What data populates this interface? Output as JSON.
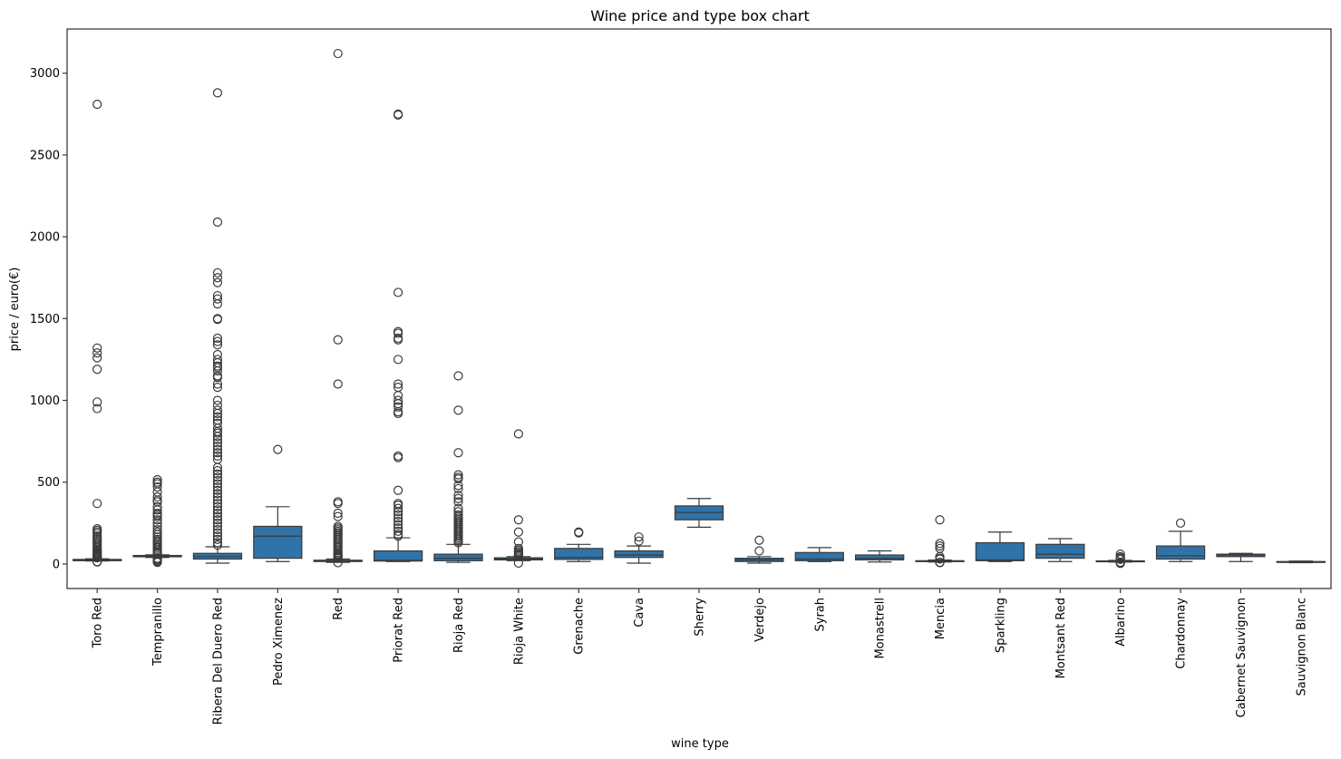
{
  "chart_data": {
    "type": "box",
    "title": "Wine price and type box chart",
    "xlabel": "wine type",
    "ylabel": "price / euro(€)",
    "ylim": [
      -150,
      3270
    ],
    "yticks": [
      0,
      500,
      1000,
      1500,
      2000,
      2500,
      3000
    ],
    "categories": [
      "Toro Red",
      "Tempranillo",
      "Ribera Del Duero Red",
      "Pedro Ximenez",
      "Red",
      "Priorat Red",
      "Rioja Red",
      "Rioja White",
      "Grenache",
      "Cava",
      "Sherry",
      "Verdejo",
      "Syrah",
      "Monastrell",
      "Mencia",
      "Sparkling",
      "Montsant Red",
      "Albarino",
      "Chardonnay",
      "Cabernet Sauvignon",
      "Sauvignon Blanc"
    ],
    "series": [
      {
        "name": "Toro Red",
        "whisker_low": 18,
        "q1": 20,
        "median": 25,
        "q3": 28,
        "whisker_high": 32,
        "outliers": [
          2810,
          1320,
          1290,
          1260,
          1190,
          990,
          950,
          370,
          215,
          205,
          195,
          185,
          170,
          160,
          150,
          140,
          130,
          120,
          110,
          100,
          92,
          85,
          78,
          72,
          66,
          60,
          55,
          50,
          45,
          42,
          38,
          14,
          12
        ]
      },
      {
        "name": "Tempranillo",
        "whisker_low": 40,
        "q1": 44,
        "median": 48,
        "q3": 52,
        "whisker_high": 56,
        "outliers": [
          515,
          500,
          490,
          470,
          440,
          410,
          390,
          380,
          350,
          330,
          310,
          300,
          290,
          270,
          250,
          230,
          210,
          195,
          180,
          165,
          150,
          140,
          130,
          120,
          110,
          100,
          90,
          80,
          72,
          65,
          35,
          28,
          22,
          15,
          10
        ]
      },
      {
        "name": "Ribera Del Duero Red",
        "whisker_low": 5,
        "q1": 30,
        "median": 45,
        "q3": 65,
        "whisker_high": 105,
        "outliers": [
          2880,
          2090,
          1780,
          1750,
          1720,
          1640,
          1620,
          1590,
          1500,
          1495,
          1380,
          1360,
          1340,
          1280,
          1250,
          1230,
          1210,
          1200,
          1180,
          1150,
          1140,
          1100,
          1080,
          1000,
          970,
          940,
          920,
          900,
          880,
          860,
          830,
          810,
          800,
          780,
          760,
          740,
          720,
          700,
          680,
          660,
          640,
          590,
          570,
          550,
          530,
          510,
          490,
          470,
          450,
          430,
          410,
          390,
          370,
          350,
          330,
          310,
          290,
          270,
          250,
          230,
          210,
          190,
          170,
          150,
          130,
          115
        ]
      },
      {
        "name": "Pedro Ximenez",
        "whisker_low": 15,
        "q1": 35,
        "median": 170,
        "q3": 230,
        "whisker_high": 350,
        "outliers": [
          700
        ]
      },
      {
        "name": "Red",
        "whisker_low": 10,
        "q1": 15,
        "median": 19,
        "q3": 23,
        "whisker_high": 30,
        "outliers": [
          3120,
          1370,
          1100,
          380,
          370,
          310,
          290,
          230,
          220,
          210,
          200,
          190,
          180,
          170,
          160,
          150,
          140,
          130,
          120,
          110,
          100,
          90,
          80,
          70,
          62,
          55,
          48,
          42,
          36,
          8
        ]
      },
      {
        "name": "Priorat Red",
        "whisker_low": 15,
        "q1": 18,
        "median": 22,
        "q3": 80,
        "whisker_high": 160,
        "outliers": [
          2750,
          2745,
          1660,
          1420,
          1410,
          1380,
          1370,
          1250,
          1100,
          1080,
          1030,
          1000,
          980,
          960,
          930,
          920,
          660,
          650,
          450,
          370,
          360,
          340,
          320,
          300,
          280,
          260,
          240,
          220,
          200,
          180,
          170
        ]
      },
      {
        "name": "Rioja Red",
        "whisker_low": 10,
        "q1": 20,
        "median": 35,
        "q3": 60,
        "whisker_high": 120,
        "outliers": [
          1150,
          940,
          680,
          545,
          530,
          520,
          480,
          460,
          420,
          400,
          380,
          340,
          320,
          300,
          290,
          280,
          270,
          260,
          250,
          240,
          230,
          220,
          210,
          200,
          190,
          180,
          170,
          160,
          150,
          140,
          130
        ]
      },
      {
        "name": "Rioja White",
        "whisker_low": 20,
        "q1": 25,
        "median": 30,
        "q3": 38,
        "whisker_high": 45,
        "outliers": [
          795,
          270,
          195,
          135,
          95,
          85,
          75,
          68,
          60,
          55,
          50,
          5
        ]
      },
      {
        "name": "Grenache",
        "whisker_low": 15,
        "q1": 28,
        "median": 40,
        "q3": 95,
        "whisker_high": 120,
        "outliers": [
          195,
          190
        ]
      },
      {
        "name": "Cava",
        "whisker_low": 5,
        "q1": 40,
        "median": 55,
        "q3": 80,
        "whisker_high": 110,
        "outliers": [
          165,
          140
        ]
      },
      {
        "name": "Sherry",
        "whisker_low": 225,
        "q1": 270,
        "median": 315,
        "q3": 355,
        "whisker_high": 400,
        "outliers": []
      },
      {
        "name": "Verdejo",
        "whisker_low": 5,
        "q1": 15,
        "median": 25,
        "q3": 35,
        "whisker_high": 45,
        "outliers": [
          145,
          80
        ]
      },
      {
        "name": "Syrah",
        "whisker_low": 15,
        "q1": 20,
        "median": 30,
        "q3": 70,
        "whisker_high": 100,
        "outliers": []
      },
      {
        "name": "Monastrell",
        "whisker_low": 12,
        "q1": 25,
        "median": 35,
        "q3": 55,
        "whisker_high": 80,
        "outliers": []
      },
      {
        "name": "Mencia",
        "whisker_low": 12,
        "q1": 15,
        "median": 18,
        "q3": 20,
        "whisker_high": 24,
        "outliers": [
          270,
          125,
          110,
          95,
          45,
          35,
          30,
          10,
          8
        ]
      },
      {
        "name": "Sparkling",
        "whisker_low": 15,
        "q1": 20,
        "median": 25,
        "q3": 130,
        "whisker_high": 195,
        "outliers": []
      },
      {
        "name": "Montsant Red",
        "whisker_low": 15,
        "q1": 35,
        "median": 60,
        "q3": 120,
        "whisker_high": 155,
        "outliers": []
      },
      {
        "name": "Albarino",
        "whisker_low": 12,
        "q1": 15,
        "median": 17,
        "q3": 19,
        "whisker_high": 22,
        "outliers": [
          60,
          45,
          38,
          32,
          28,
          10,
          7,
          5,
          4
        ]
      },
      {
        "name": "Chardonnay",
        "whisker_low": 15,
        "q1": 30,
        "median": 50,
        "q3": 110,
        "whisker_high": 200,
        "outliers": [
          250
        ]
      },
      {
        "name": "Cabernet Sauvignon",
        "whisker_low": 15,
        "q1": 45,
        "median": 55,
        "q3": 60,
        "whisker_high": 65,
        "outliers": []
      },
      {
        "name": "Sauvignon Blanc",
        "whisker_low": 8,
        "q1": 10,
        "median": 12,
        "q3": 15,
        "whisker_high": 18,
        "outliers": []
      }
    ]
  }
}
